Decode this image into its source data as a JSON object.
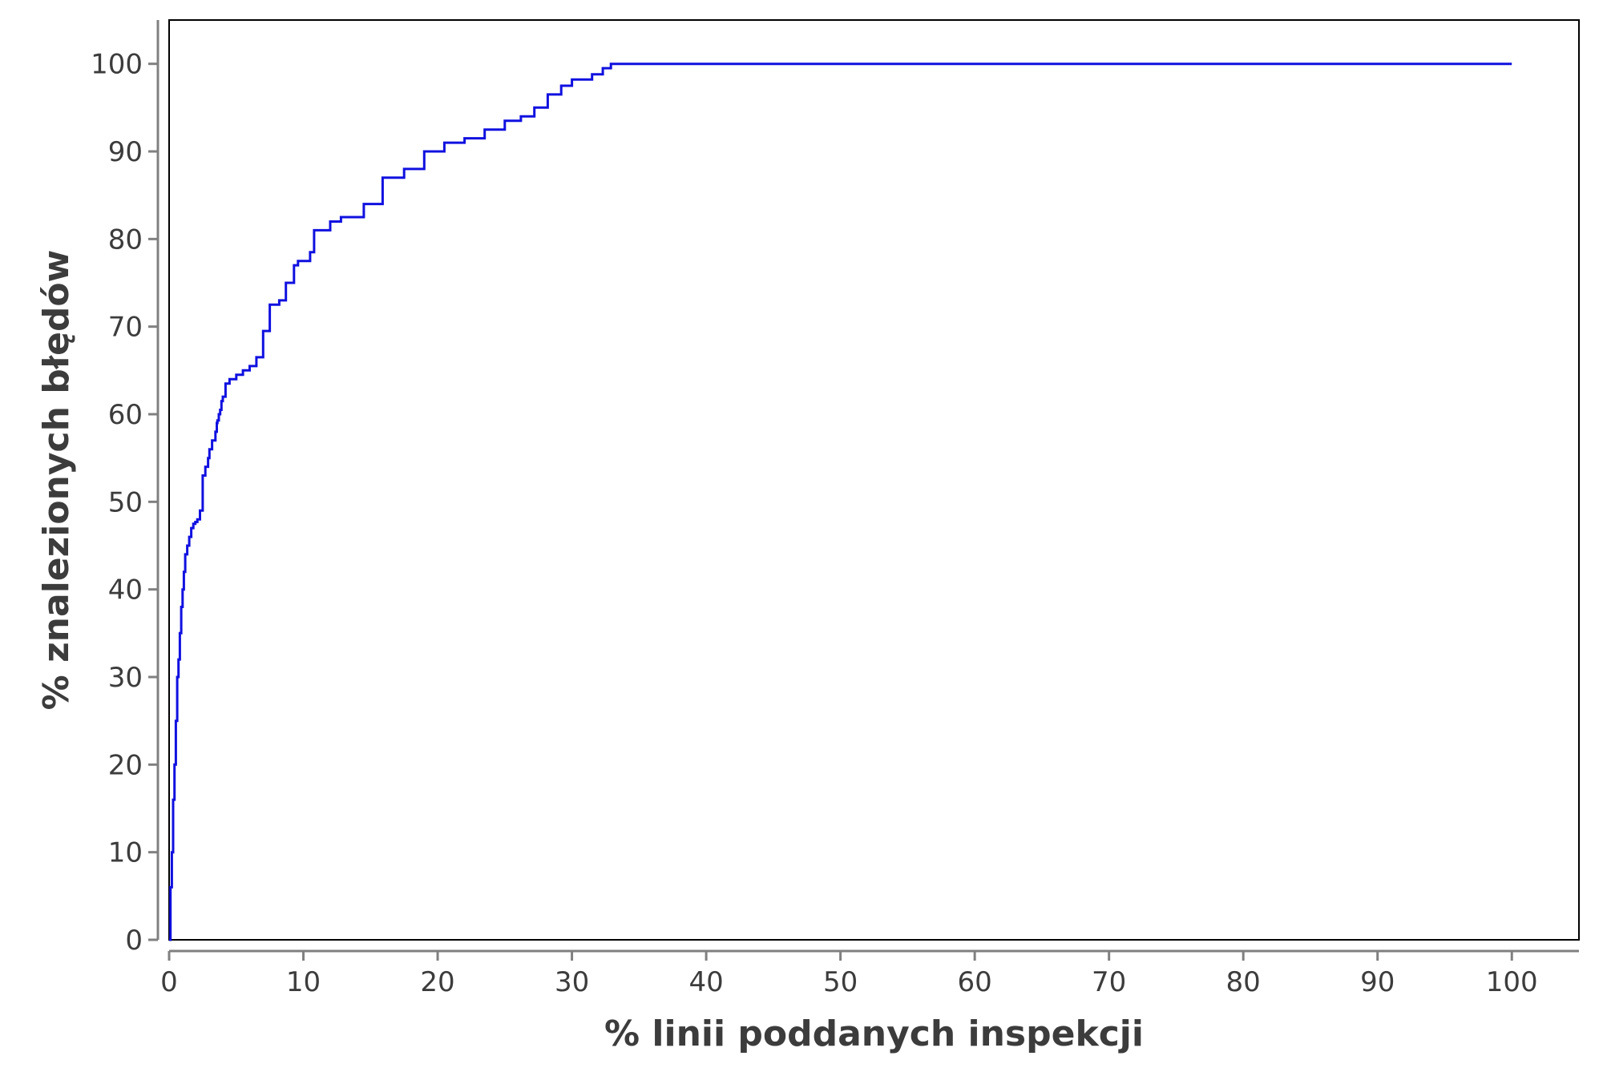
{
  "chart_data": {
    "type": "line",
    "title": "",
    "xlabel": "% linii poddanych inspekcji",
    "ylabel": "% znalezionych błędów",
    "xlim": [
      0,
      105
    ],
    "ylim": [
      0,
      105
    ],
    "x_ticks": [
      0,
      10,
      20,
      30,
      40,
      50,
      60,
      70,
      80,
      90,
      100
    ],
    "y_ticks": [
      0,
      10,
      20,
      30,
      40,
      50,
      60,
      70,
      80,
      90,
      100
    ],
    "x_tick_labels": [
      "0",
      "10",
      "20",
      "30",
      "40",
      "50",
      "60",
      "70",
      "80",
      "90",
      "100"
    ],
    "y_tick_labels": [
      "0",
      "10",
      "20",
      "30",
      "40",
      "50",
      "60",
      "70",
      "80",
      "90",
      "100"
    ],
    "grid": false,
    "legend": "none",
    "colors": {
      "series": "#1010e0",
      "axis": "#808080",
      "frame": "#000000"
    },
    "series": [
      {
        "values_step": true,
        "x": [
          0,
          0.1,
          0.2,
          0.3,
          0.4,
          0.5,
          0.6,
          0.7,
          0.8,
          0.9,
          1.0,
          1.1,
          1.2,
          1.35,
          1.5,
          1.65,
          1.8,
          1.95,
          2.1,
          2.3,
          2.5,
          2.7,
          2.9,
          3.0,
          3.2,
          3.45,
          3.55,
          3.6,
          3.7,
          3.8,
          3.9,
          4.0,
          4.2,
          4.5,
          5.0,
          5.5,
          6.0,
          6.5,
          7.0,
          7.5,
          8.2,
          8.7,
          9.3,
          9.6,
          10.5,
          10.8,
          12.0,
          12.8,
          14.5,
          15.9,
          17.5,
          19.0,
          20.5,
          22.0,
          23.5,
          25.0,
          26.2,
          27.2,
          28.2,
          29.2,
          30.0,
          31.5,
          32.3,
          32.9,
          33.5,
          34.2,
          34.8,
          35.4,
          36.2,
          37.2,
          38.4,
          45.0,
          60.0,
          80.0,
          100.0
        ],
        "y": [
          0,
          6,
          10,
          16,
          20,
          25,
          30,
          32,
          35,
          38,
          40,
          42,
          44,
          45,
          46,
          47,
          47.5,
          47.7,
          48,
          49,
          53,
          54,
          55,
          56,
          57,
          58,
          59,
          59.3,
          60,
          60.5,
          61.5,
          62,
          63.5,
          64,
          64.5,
          65,
          65.5,
          66.5,
          69.5,
          72.5,
          73,
          75,
          77,
          77.5,
          78.5,
          81,
          82,
          82.5,
          84,
          87,
          88,
          90,
          91,
          91.5,
          92.5,
          93.5,
          94,
          95,
          96.5,
          97.5,
          98.2,
          98.8,
          99.5,
          100,
          100,
          100,
          100,
          100,
          100,
          100,
          100,
          100,
          100,
          100,
          100
        ]
      }
    ]
  }
}
